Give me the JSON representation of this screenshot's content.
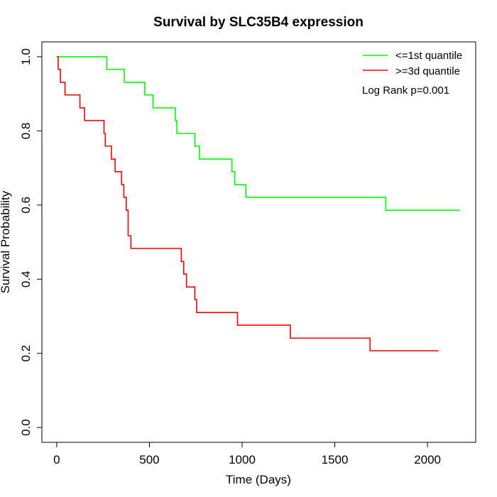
{
  "chart_data": {
    "type": "line",
    "subtype": "step",
    "title": "Survival by SLC35B4 expression",
    "xlabel": "Time (Days)",
    "ylabel": "Survival Probability",
    "xlim": [
      -80,
      2260
    ],
    "ylim": [
      -0.04,
      1.04
    ],
    "xticks": [
      0,
      500,
      1000,
      1500,
      2000
    ],
    "yticks": [
      0.0,
      0.2,
      0.4,
      0.6,
      0.8,
      1.0
    ],
    "xtick_labels": [
      "0",
      "500",
      "1000",
      "1500",
      "2000"
    ],
    "ytick_labels": [
      "0.0",
      "0.2",
      "0.4",
      "0.6",
      "0.8",
      "1.0"
    ],
    "grid": false,
    "legend_position": "top-right",
    "annotation": "Log Rank p=0.001",
    "series": [
      {
        "name": "<=1st quantile",
        "color": "#00ff00",
        "points": [
          [
            0,
            1.0
          ],
          [
            270,
            1.0
          ],
          [
            270,
            0.966
          ],
          [
            365,
            0.966
          ],
          [
            365,
            0.931
          ],
          [
            475,
            0.931
          ],
          [
            475,
            0.897
          ],
          [
            520,
            0.897
          ],
          [
            520,
            0.862
          ],
          [
            640,
            0.862
          ],
          [
            640,
            0.828
          ],
          [
            648,
            0.828
          ],
          [
            648,
            0.793
          ],
          [
            745,
            0.793
          ],
          [
            745,
            0.759
          ],
          [
            770,
            0.759
          ],
          [
            770,
            0.724
          ],
          [
            945,
            0.724
          ],
          [
            945,
            0.69
          ],
          [
            960,
            0.69
          ],
          [
            960,
            0.655
          ],
          [
            1020,
            0.655
          ],
          [
            1020,
            0.621
          ],
          [
            1775,
            0.621
          ],
          [
            1775,
            0.586
          ],
          [
            2175,
            0.586
          ]
        ]
      },
      {
        "name": ">=3d quantile",
        "color": "#ff0000",
        "points": [
          [
            0,
            1.0
          ],
          [
            8,
            1.0
          ],
          [
            8,
            0.966
          ],
          [
            20,
            0.966
          ],
          [
            20,
            0.931
          ],
          [
            45,
            0.931
          ],
          [
            45,
            0.897
          ],
          [
            125,
            0.897
          ],
          [
            125,
            0.862
          ],
          [
            150,
            0.862
          ],
          [
            150,
            0.828
          ],
          [
            255,
            0.828
          ],
          [
            255,
            0.793
          ],
          [
            262,
            0.793
          ],
          [
            262,
            0.759
          ],
          [
            295,
            0.759
          ],
          [
            295,
            0.724
          ],
          [
            315,
            0.724
          ],
          [
            315,
            0.69
          ],
          [
            350,
            0.69
          ],
          [
            350,
            0.655
          ],
          [
            362,
            0.655
          ],
          [
            362,
            0.621
          ],
          [
            375,
            0.621
          ],
          [
            375,
            0.586
          ],
          [
            385,
            0.586
          ],
          [
            385,
            0.517
          ],
          [
            400,
            0.517
          ],
          [
            400,
            0.483
          ],
          [
            672,
            0.483
          ],
          [
            672,
            0.448
          ],
          [
            685,
            0.448
          ],
          [
            685,
            0.414
          ],
          [
            700,
            0.414
          ],
          [
            700,
            0.379
          ],
          [
            745,
            0.379
          ],
          [
            745,
            0.345
          ],
          [
            755,
            0.345
          ],
          [
            755,
            0.31
          ],
          [
            975,
            0.31
          ],
          [
            975,
            0.276
          ],
          [
            1260,
            0.276
          ],
          [
            1260,
            0.241
          ],
          [
            1690,
            0.241
          ],
          [
            1690,
            0.207
          ],
          [
            2060,
            0.207
          ]
        ]
      }
    ]
  }
}
